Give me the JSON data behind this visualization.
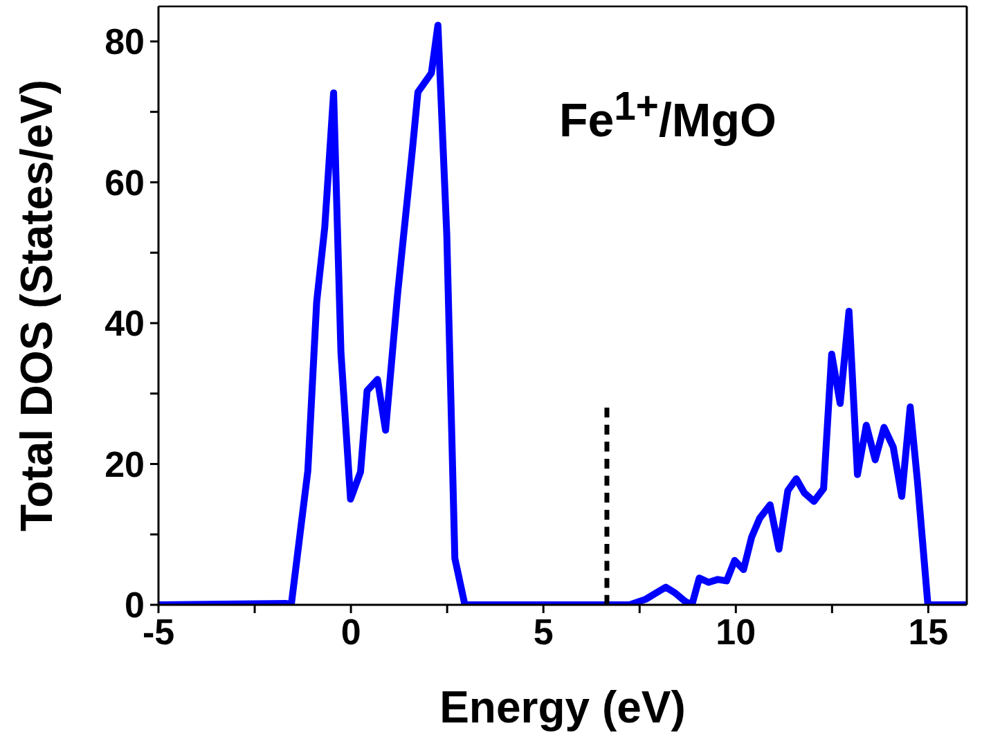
{
  "chart_data": {
    "type": "line",
    "xlabel": "Energy (eV)",
    "ylabel": "Total DOS (States/eV)",
    "annotations": [
      "Fe$^{1+}$/MgO"
    ],
    "xlim": [
      -5,
      16
    ],
    "ylim": [
      0,
      85
    ],
    "xticks": [
      -5,
      {
        "value": -2.5,
        "label": null
      },
      0,
      {
        "value": 2.5,
        "label": null
      },
      5,
      {
        "value": 7.5,
        "label": null
      },
      10,
      {
        "value": 12.5,
        "label": null
      },
      15
    ],
    "yticks": [
      0,
      {
        "value": 10,
        "label": null
      },
      20,
      {
        "value": 30,
        "label": null
      },
      40,
      {
        "value": 50,
        "label": null
      },
      60,
      {
        "value": 70,
        "label": null
      },
      80
    ],
    "marker": "none",
    "series": [
      {
        "color": "#0000ff",
        "line_style": "solid",
        "x": [
          -5,
          -1.68,
          -1.55,
          -1.12,
          -0.89,
          -0.68,
          -0.45,
          -0.26,
          -0.01,
          0.25,
          0.42,
          0.69,
          0.9,
          1.21,
          1.6,
          1.74,
          2.09,
          2.26,
          2.49,
          2.7,
          2.96,
          7.24,
          7.66,
          7.93,
          8.18,
          8.42,
          8.68,
          8.86,
          9.05,
          9.29,
          9.53,
          9.76,
          9.97,
          10.2,
          10.41,
          10.62,
          10.89,
          11.12,
          11.35,
          11.57,
          11.78,
          12.03,
          12.28,
          12.49,
          12.71,
          12.94,
          13.16,
          13.39,
          13.62,
          13.85,
          14.09,
          14.31,
          14.53,
          14.72,
          14.99,
          16
        ],
        "values": [
          0,
          0.2,
          0,
          19,
          43,
          53.6,
          72.7,
          35.9,
          15,
          18.9,
          30.4,
          32,
          24.8,
          44,
          64.8,
          72.8,
          75.5,
          82.3,
          52.6,
          6.6,
          0,
          0,
          0.8,
          1.7,
          2.5,
          1.7,
          0.5,
          0,
          3.8,
          3.2,
          3.6,
          3.4,
          6.3,
          5,
          9.6,
          12.3,
          14.2,
          7.9,
          16.2,
          17.9,
          15.9,
          14.7,
          16.5,
          35.6,
          28.6,
          41.7,
          18.5,
          25.5,
          20.6,
          25.2,
          22.4,
          15.4,
          28.1,
          17.5,
          0,
          0
        ]
      },
      {
        "color": "#000000",
        "line_style": "dashed",
        "x": [
          6.65,
          6.65
        ],
        "values": [
          0,
          28
        ]
      }
    ]
  }
}
